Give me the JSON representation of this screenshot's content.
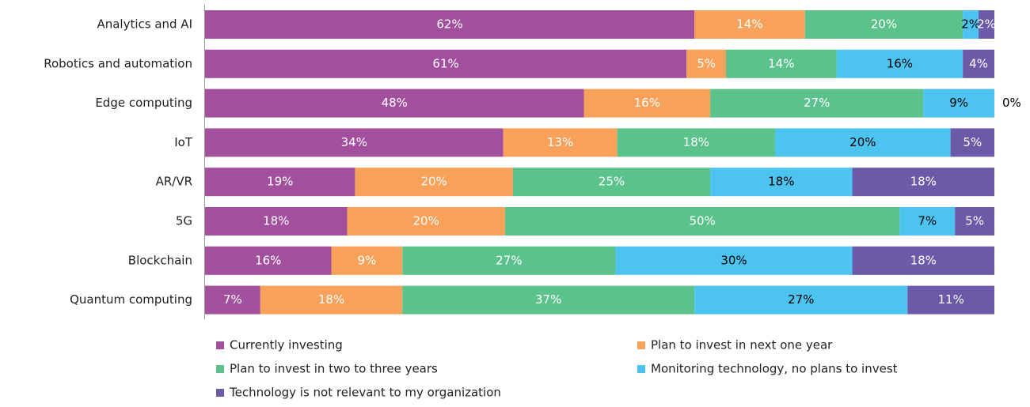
{
  "chart_data": {
    "type": "stacked_bar_horizontal",
    "categories": [
      "Analytics and AI",
      "Robotics and automation",
      "Edge computing",
      "IoT",
      "AR/VR",
      "5G",
      "Blockchain",
      "Quantum computing"
    ],
    "series": [
      {
        "name": "Currently investing",
        "color": "#a24f9e",
        "label_color": "#ffffff",
        "values": [
          62,
          61,
          48,
          34,
          19,
          18,
          16,
          7
        ],
        "value_labels": [
          "62%",
          "61%",
          "48%",
          "34%",
          "19%",
          "18%",
          "16%",
          "7%"
        ]
      },
      {
        "name": "Plan to invest in next one year",
        "color": "#f7a15a",
        "label_color": "#ffffff",
        "values": [
          14,
          5,
          16,
          13,
          20,
          20,
          9,
          18
        ],
        "value_labels": [
          "14%",
          "5%",
          "16%",
          "13%",
          "20%",
          "20%",
          "9%",
          "18%"
        ]
      },
      {
        "name": "Plan to invest in two to three years",
        "color": "#5cc28c",
        "label_color": "#ffffff",
        "values": [
          20,
          14,
          27,
          18,
          25,
          50,
          27,
          37
        ],
        "value_labels": [
          "20%",
          "14%",
          "27%",
          "18%",
          "25%",
          "50%",
          "27%",
          "37%"
        ]
      },
      {
        "name": "Monitoring technology, no plans to invest",
        "color": "#4dc3ef",
        "label_color": "#000000",
        "values": [
          2,
          16,
          9,
          20,
          18,
          7,
          30,
          27
        ],
        "value_labels": [
          "2%",
          "16%",
          "9%",
          "20%",
          "18%",
          "7%",
          "30%",
          "27%"
        ]
      },
      {
        "name": "Technology is not relevant to my organization",
        "color": "#6a5aa8",
        "label_color": "#ffffff",
        "values": [
          2,
          4,
          0,
          5,
          18,
          5,
          18,
          11
        ],
        "value_labels": [
          "2%",
          "4%",
          "0%",
          "5%",
          "18%",
          "5%",
          "18%",
          "11%"
        ]
      }
    ]
  }
}
